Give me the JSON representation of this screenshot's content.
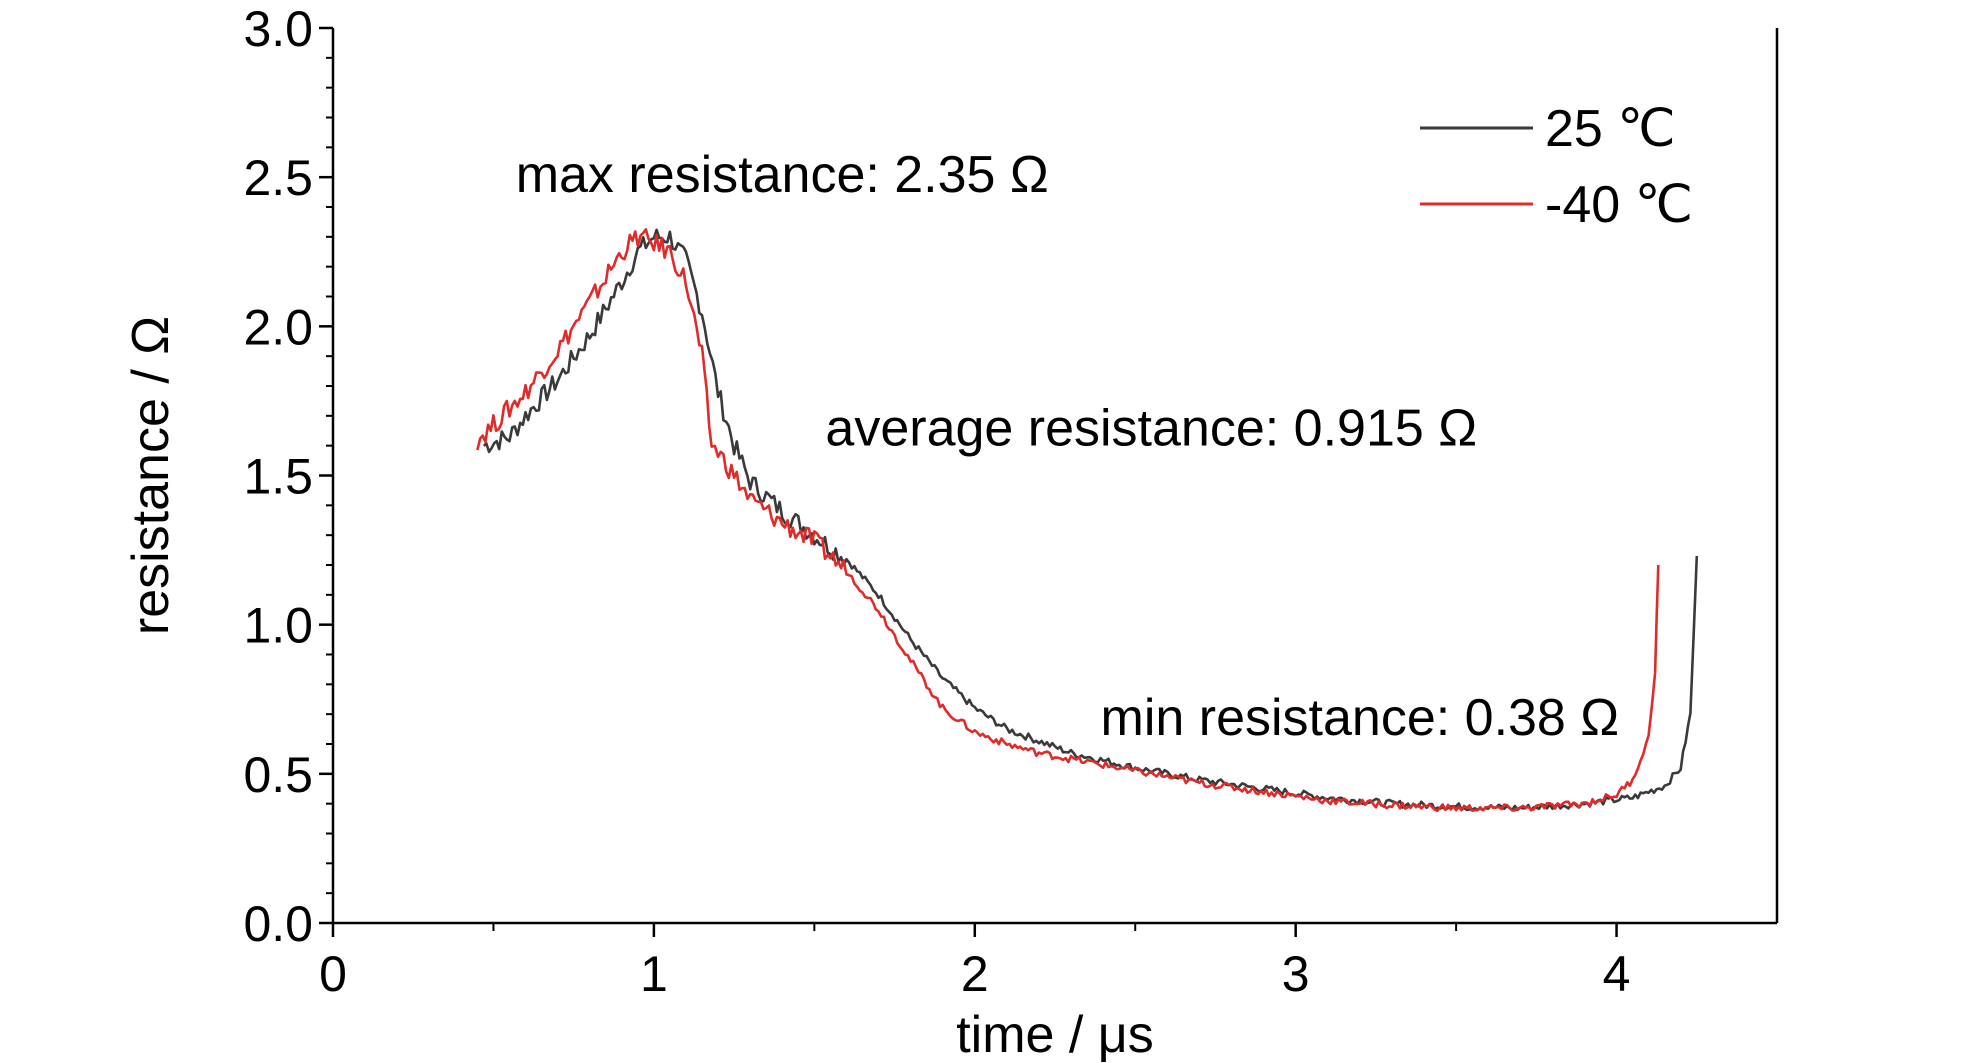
{
  "chart_data": {
    "type": "line",
    "xlabel": "time / μs",
    "ylabel": "resistance / Ω",
    "xlim": [
      0,
      4.5
    ],
    "ylim": [
      0,
      3.0
    ],
    "x_ticks": [
      "0",
      "1",
      "2",
      "3",
      "4"
    ],
    "y_ticks": [
      "0.0",
      "0.5",
      "1.0",
      "1.5",
      "2.0",
      "2.5",
      "3.0"
    ],
    "grid": false,
    "legend_position": "top-right",
    "annotations": [
      {
        "text": "max resistance: 2.35 Ω",
        "x": 1.4,
        "y": 2.45
      },
      {
        "text": "average resistance: 0.915 Ω",
        "x": 2.55,
        "y": 1.6
      },
      {
        "text": "min resistance: 0.38 Ω",
        "x": 3.2,
        "y": 0.63
      }
    ],
    "series": [
      {
        "name": "25 ℃",
        "color": "#3a3a3a",
        "x": [
          0.47,
          0.55,
          0.6,
          0.7,
          0.8,
          0.9,
          0.95,
          1.0,
          1.05,
          1.1,
          1.15,
          1.2,
          1.25,
          1.3,
          1.4,
          1.5,
          1.6,
          1.7,
          1.8,
          1.9,
          2.0,
          2.1,
          2.2,
          2.3,
          2.5,
          2.7,
          2.9,
          3.1,
          3.3,
          3.5,
          3.7,
          3.9,
          4.05,
          4.15,
          4.2,
          4.23,
          4.25
        ],
        "y": [
          1.6,
          1.63,
          1.7,
          1.82,
          1.97,
          2.15,
          2.25,
          2.3,
          2.3,
          2.22,
          2.05,
          1.78,
          1.6,
          1.48,
          1.38,
          1.3,
          1.22,
          1.1,
          0.95,
          0.82,
          0.72,
          0.65,
          0.61,
          0.57,
          0.52,
          0.48,
          0.45,
          0.42,
          0.4,
          0.39,
          0.385,
          0.4,
          0.42,
          0.46,
          0.52,
          0.7,
          1.23
        ]
      },
      {
        "name": "-40 ℃",
        "color": "#e02b2b",
        "x": [
          0.45,
          0.5,
          0.6,
          0.7,
          0.8,
          0.9,
          0.95,
          1.0,
          1.05,
          1.1,
          1.15,
          1.18,
          1.2,
          1.25,
          1.3,
          1.4,
          1.5,
          1.6,
          1.7,
          1.8,
          1.9,
          2.0,
          2.1,
          2.2,
          2.3,
          2.5,
          2.7,
          2.9,
          3.1,
          3.3,
          3.5,
          3.7,
          3.9,
          4.0,
          4.05,
          4.1,
          4.12,
          4.13
        ],
        "y": [
          1.62,
          1.67,
          1.78,
          1.92,
          2.08,
          2.25,
          2.3,
          2.28,
          2.25,
          2.15,
          1.9,
          1.6,
          1.58,
          1.5,
          1.42,
          1.34,
          1.28,
          1.18,
          1.05,
          0.88,
          0.72,
          0.64,
          0.6,
          0.57,
          0.55,
          0.51,
          0.47,
          0.44,
          0.41,
          0.395,
          0.385,
          0.385,
          0.4,
          0.43,
          0.48,
          0.62,
          0.85,
          1.2
        ]
      }
    ]
  }
}
